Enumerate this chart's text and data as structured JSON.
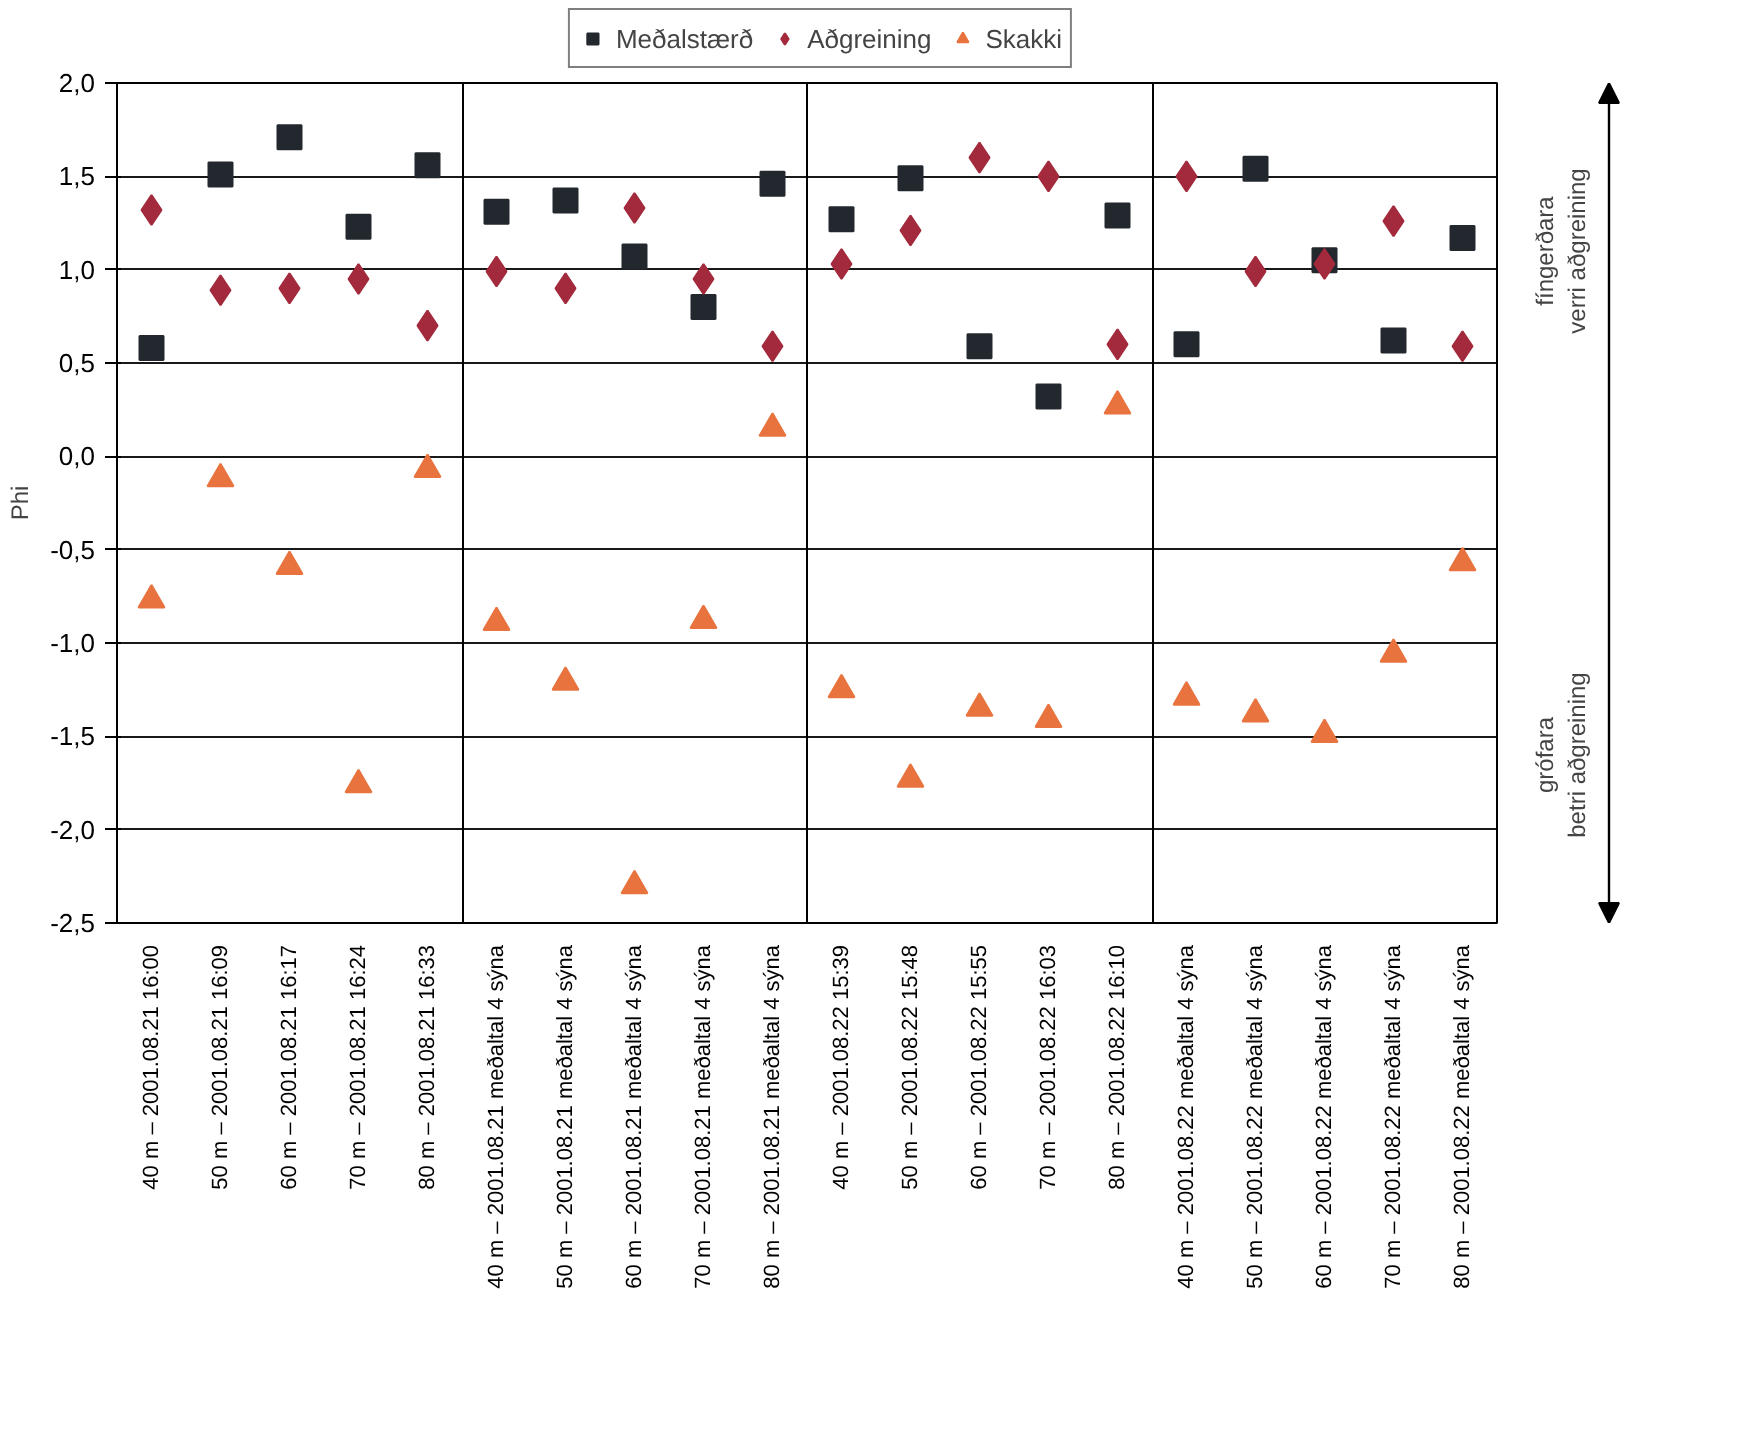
{
  "chart_data": {
    "type": "scatter",
    "ylabel": "Phi",
    "categories": [
      "40 m – 2001.08.21 16:00",
      "50 m – 2001.08.21 16:09",
      "60 m – 2001.08.21 16:17",
      "70 m – 2001.08.21 16:24",
      "80 m – 2001.08.21 16:33",
      "40 m – 2001.08.21 meðaltal 4 sýna",
      "50 m – 2001.08.21 meðaltal 4 sýna",
      "60 m – 2001.08.21 meðaltal 4 sýna",
      "70 m – 2001.08.21 meðaltal 4 sýna",
      "80 m – 2001.08.21 meðaltal 4 sýna",
      "40 m – 2001.08.22 15:39",
      "50 m – 2001.08.22 15:48",
      "60 m – 2001.08.22 15:55",
      "70 m – 2001.08.22 16:03",
      "80 m – 2001.08.22 16:10",
      "40 m – 2001.08.22 meðaltal 4 sýna",
      "50 m – 2001.08.22 meðaltal 4 sýna",
      "60 m – 2001.08.22 meðaltal 4 sýna",
      "70 m – 2001.08.22 meðaltal 4 sýna",
      "80 m – 2001.08.22 meðaltal 4 sýna"
    ],
    "series": [
      {
        "name": "Meðalstærð",
        "color": "#22282e",
        "marker": "square",
        "values": [
          0.58,
          1.51,
          1.71,
          1.23,
          1.56,
          1.31,
          1.37,
          1.07,
          0.8,
          1.46,
          1.27,
          1.49,
          0.59,
          0.32,
          1.29,
          0.6,
          1.54,
          1.05,
          0.62,
          1.17
        ]
      },
      {
        "name": "Aðgreining",
        "color": "#a32a3c",
        "marker": "diamond",
        "values": [
          1.32,
          0.89,
          0.9,
          0.95,
          0.7,
          0.99,
          0.9,
          1.33,
          0.95,
          0.59,
          1.03,
          1.21,
          1.6,
          1.5,
          0.6,
          1.5,
          0.99,
          1.03,
          1.26,
          0.59
        ]
      },
      {
        "name": "Skakki",
        "color": "#e8733e",
        "marker": "triangle",
        "values": [
          -0.77,
          -0.12,
          -0.59,
          -1.76,
          -0.07,
          -0.89,
          -1.21,
          -2.3,
          -0.88,
          0.15,
          -1.25,
          -1.73,
          -1.35,
          -1.41,
          0.27,
          -1.29,
          -1.38,
          -1.49,
          -1.06,
          -0.57
        ]
      }
    ],
    "ylim": [
      -2.5,
      2.0
    ],
    "yticks": [
      {
        "value": -2.5,
        "label": "-2,5"
      },
      {
        "value": -2.0,
        "label": "-2,0"
      },
      {
        "value": -1.5,
        "label": "-1,5"
      },
      {
        "value": -1.0,
        "label": "-1,0"
      },
      {
        "value": -0.5,
        "label": "-0,5"
      },
      {
        "value": 0.0,
        "label": "0,0"
      },
      {
        "value": 0.5,
        "label": "0,5"
      },
      {
        "value": 1.0,
        "label": "1,0"
      },
      {
        "value": 1.5,
        "label": "1,5"
      },
      {
        "value": 2.0,
        "label": "2,0"
      }
    ],
    "annotations": [
      "fíngerðara\nverri aðgreining",
      "grófara\nbetri aðgreining"
    ],
    "grid": true,
    "legend": "top"
  }
}
